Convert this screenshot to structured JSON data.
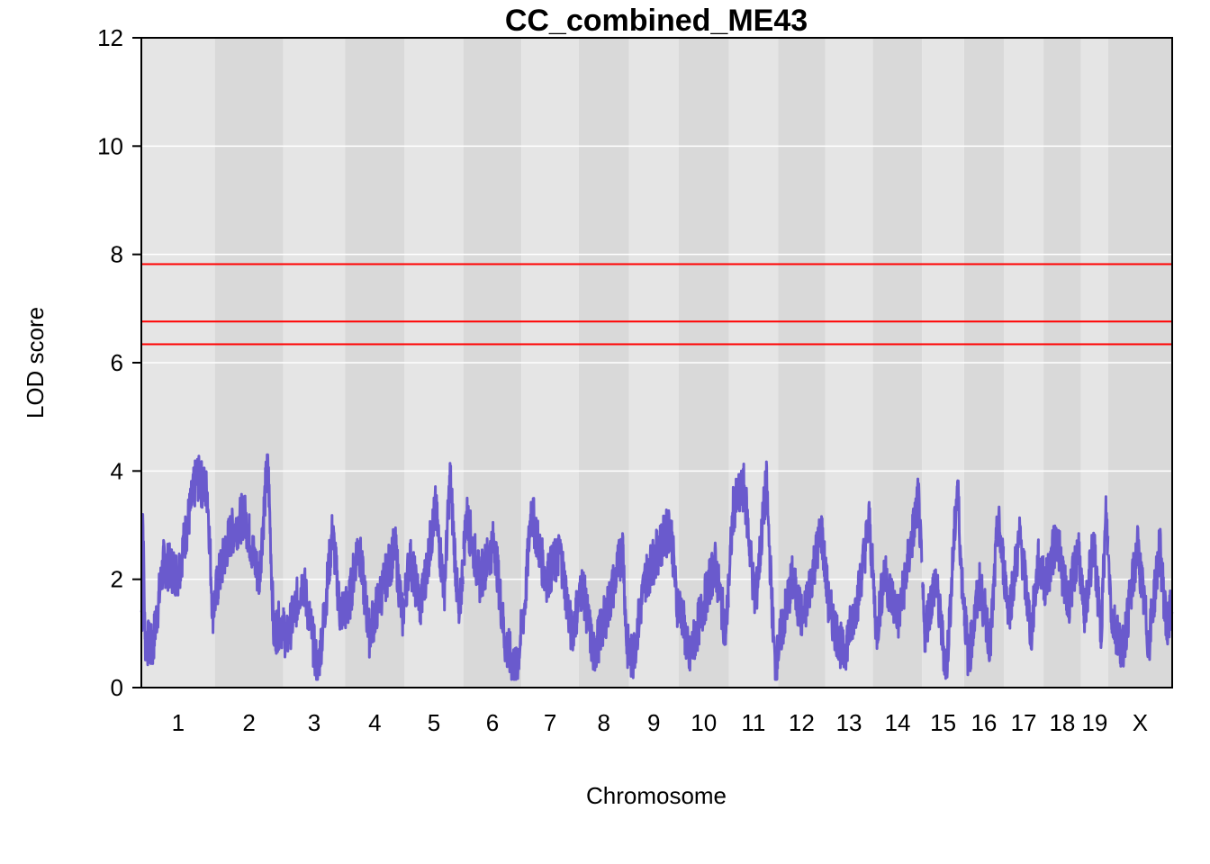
{
  "chart_data": {
    "type": "line",
    "title": "CC_combined_ME43",
    "xlabel": "Chromosome",
    "ylabel": "LOD score",
    "ylim": [
      0,
      12
    ],
    "yticks": [
      0,
      2,
      4,
      6,
      8,
      10,
      12
    ],
    "grid": true,
    "chromosomes": [
      {
        "label": "1",
        "start": 0.0,
        "end": 1.0
      },
      {
        "label": "2",
        "start": 1.0,
        "end": 1.93
      },
      {
        "label": "3",
        "start": 1.93,
        "end": 2.77
      },
      {
        "label": "4",
        "start": 2.77,
        "end": 3.58
      },
      {
        "label": "5",
        "start": 3.58,
        "end": 4.38
      },
      {
        "label": "6",
        "start": 4.38,
        "end": 5.17
      },
      {
        "label": "7",
        "start": 5.17,
        "end": 5.95
      },
      {
        "label": "8",
        "start": 5.95,
        "end": 6.63
      },
      {
        "label": "9",
        "start": 6.63,
        "end": 7.31
      },
      {
        "label": "10",
        "start": 7.31,
        "end": 7.99
      },
      {
        "label": "11",
        "start": 7.99,
        "end": 8.66
      },
      {
        "label": "12",
        "start": 8.66,
        "end": 9.3
      },
      {
        "label": "13",
        "start": 9.3,
        "end": 9.95
      },
      {
        "label": "14",
        "start": 9.95,
        "end": 10.62
      },
      {
        "label": "15",
        "start": 10.62,
        "end": 11.19
      },
      {
        "label": "16",
        "start": 11.19,
        "end": 11.73
      },
      {
        "label": "17",
        "start": 11.73,
        "end": 12.27
      },
      {
        "label": "18",
        "start": 12.27,
        "end": 12.78
      },
      {
        "label": "19",
        "start": 12.78,
        "end": 13.15
      },
      {
        "label": "X",
        "start": 13.15,
        "end": 14.02
      }
    ],
    "thresholds": [
      7.82,
      6.76,
      6.34
    ],
    "series": [
      {
        "color": "#6a5acd",
        "peaks": [
          [
            0.02,
            3.2
          ],
          [
            0.05,
            0.9
          ],
          [
            0.15,
            0.7
          ],
          [
            0.3,
            2.3
          ],
          [
            0.5,
            2.1
          ],
          [
            0.75,
            3.9
          ],
          [
            0.9,
            3.6
          ],
          [
            0.97,
            1.4
          ],
          [
            1.05,
            2.0
          ],
          [
            1.2,
            2.8
          ],
          [
            1.4,
            3.2
          ],
          [
            1.6,
            2.0
          ],
          [
            1.72,
            4.25
          ],
          [
            1.8,
            1.0
          ],
          [
            1.9,
            1.2
          ],
          [
            1.98,
            0.9
          ],
          [
            2.2,
            2.0
          ],
          [
            2.4,
            0.3
          ],
          [
            2.5,
            1.5
          ],
          [
            2.6,
            2.9
          ],
          [
            2.7,
            1.4
          ],
          [
            2.82,
            1.5
          ],
          [
            2.95,
            2.7
          ],
          [
            3.1,
            1.0
          ],
          [
            3.25,
            1.7
          ],
          [
            3.45,
            2.6
          ],
          [
            3.55,
            1.3
          ],
          [
            3.65,
            2.4
          ],
          [
            3.8,
            1.5
          ],
          [
            4.0,
            3.3
          ],
          [
            4.12,
            1.8
          ],
          [
            4.2,
            3.9
          ],
          [
            4.32,
            1.2
          ],
          [
            4.42,
            3.2
          ],
          [
            4.6,
            2.0
          ],
          [
            4.8,
            2.7
          ],
          [
            4.95,
            0.8
          ],
          [
            5.1,
            0.3
          ],
          [
            5.22,
            1.6
          ],
          [
            5.3,
            3.3
          ],
          [
            5.5,
            2.0
          ],
          [
            5.7,
            2.5
          ],
          [
            5.85,
            1.0
          ],
          [
            6.0,
            1.9
          ],
          [
            6.15,
            0.6
          ],
          [
            6.35,
            1.5
          ],
          [
            6.55,
            2.6
          ],
          [
            6.6,
            0.8
          ],
          [
            6.68,
            0.5
          ],
          [
            6.85,
            2.0
          ],
          [
            7.05,
            2.6
          ],
          [
            7.2,
            3.0
          ],
          [
            7.28,
            1.6
          ],
          [
            7.35,
            1.4
          ],
          [
            7.45,
            0.5
          ],
          [
            7.6,
            1.3
          ],
          [
            7.8,
            2.3
          ],
          [
            7.95,
            1.0
          ],
          [
            8.05,
            3.3
          ],
          [
            8.2,
            3.7
          ],
          [
            8.35,
            1.5
          ],
          [
            8.5,
            3.8
          ],
          [
            8.62,
            0.3
          ],
          [
            8.7,
            1.0
          ],
          [
            8.85,
            2.0
          ],
          [
            9.0,
            1.2
          ],
          [
            9.15,
            2.3
          ],
          [
            9.25,
            2.9
          ],
          [
            9.35,
            1.5
          ],
          [
            9.55,
            0.6
          ],
          [
            9.75,
            1.7
          ],
          [
            9.9,
            3.1
          ],
          [
            10.0,
            1.0
          ],
          [
            10.1,
            2.1
          ],
          [
            10.3,
            1.3
          ],
          [
            10.45,
            2.5
          ],
          [
            10.57,
            3.5
          ],
          [
            10.65,
            1.0
          ],
          [
            10.8,
            2.0
          ],
          [
            10.95,
            0.3
          ],
          [
            11.1,
            3.8
          ],
          [
            11.15,
            2.2
          ],
          [
            11.25,
            0.5
          ],
          [
            11.4,
            1.9
          ],
          [
            11.55,
            0.8
          ],
          [
            11.65,
            3.1
          ],
          [
            11.8,
            1.4
          ],
          [
            11.95,
            2.8
          ],
          [
            12.1,
            1.0
          ],
          [
            12.2,
            2.3
          ],
          [
            12.3,
            1.9
          ],
          [
            12.45,
            2.8
          ],
          [
            12.6,
            1.5
          ],
          [
            12.75,
            2.6
          ],
          [
            12.82,
            1.2
          ],
          [
            12.95,
            2.7
          ],
          [
            13.05,
            1.0
          ],
          [
            13.12,
            3.2
          ],
          [
            13.2,
            1.3
          ],
          [
            13.35,
            0.7
          ],
          [
            13.55,
            2.6
          ],
          [
            13.7,
            0.8
          ],
          [
            13.85,
            2.6
          ],
          [
            13.95,
            1.0
          ],
          [
            14.0,
            1.4
          ]
        ]
      }
    ]
  }
}
